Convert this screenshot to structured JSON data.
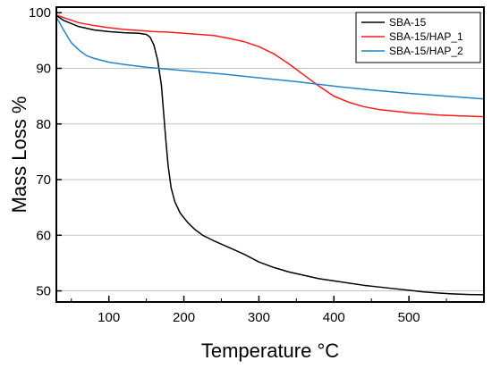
{
  "chart_data": {
    "type": "line",
    "xlabel": "Temperature °C",
    "ylabel": "Mass Loss %",
    "xlim": [
      30,
      600
    ],
    "ylim": [
      48,
      101
    ],
    "x_ticks": [
      100,
      200,
      300,
      400,
      500
    ],
    "y_ticks": [
      50,
      60,
      70,
      80,
      90,
      100
    ],
    "grid": "horizontal",
    "legend_position": "top-right",
    "series": [
      {
        "name": "SBA-15",
        "color": "#000000",
        "points": [
          [
            30,
            99.5
          ],
          [
            40,
            98.6
          ],
          [
            60,
            97.5
          ],
          [
            80,
            96.9
          ],
          [
            100,
            96.6
          ],
          [
            120,
            96.4
          ],
          [
            140,
            96.3
          ],
          [
            150,
            96.1
          ],
          [
            155,
            95.6
          ],
          [
            160,
            94.2
          ],
          [
            165,
            91.5
          ],
          [
            170,
            87.0
          ],
          [
            173,
            82.0
          ],
          [
            176,
            77.0
          ],
          [
            179,
            72.5
          ],
          [
            183,
            68.5
          ],
          [
            188,
            66.0
          ],
          [
            195,
            64.0
          ],
          [
            205,
            62.3
          ],
          [
            215,
            61.0
          ],
          [
            225,
            60.0
          ],
          [
            240,
            59.0
          ],
          [
            260,
            57.8
          ],
          [
            280,
            56.6
          ],
          [
            300,
            55.2
          ],
          [
            320,
            54.2
          ],
          [
            340,
            53.4
          ],
          [
            360,
            52.8
          ],
          [
            380,
            52.2
          ],
          [
            400,
            51.8
          ],
          [
            420,
            51.4
          ],
          [
            440,
            51.0
          ],
          [
            460,
            50.7
          ],
          [
            480,
            50.4
          ],
          [
            500,
            50.1
          ],
          [
            520,
            49.8
          ],
          [
            540,
            49.6
          ],
          [
            560,
            49.45
          ],
          [
            580,
            49.35
          ],
          [
            600,
            49.3
          ]
        ]
      },
      {
        "name": "SBA-15/HAP_1",
        "color": "#ff1a1a",
        "points": [
          [
            30,
            99.6
          ],
          [
            40,
            99.1
          ],
          [
            60,
            98.2
          ],
          [
            80,
            97.7
          ],
          [
            100,
            97.3
          ],
          [
            120,
            97.0
          ],
          [
            140,
            96.8
          ],
          [
            160,
            96.6
          ],
          [
            180,
            96.5
          ],
          [
            200,
            96.3
          ],
          [
            220,
            96.1
          ],
          [
            240,
            95.9
          ],
          [
            260,
            95.4
          ],
          [
            280,
            94.8
          ],
          [
            300,
            93.9
          ],
          [
            320,
            92.6
          ],
          [
            340,
            90.8
          ],
          [
            360,
            88.8
          ],
          [
            380,
            86.8
          ],
          [
            400,
            85.0
          ],
          [
            420,
            83.9
          ],
          [
            440,
            83.1
          ],
          [
            460,
            82.6
          ],
          [
            480,
            82.3
          ],
          [
            500,
            82.0
          ],
          [
            520,
            81.8
          ],
          [
            540,
            81.6
          ],
          [
            560,
            81.5
          ],
          [
            580,
            81.4
          ],
          [
            600,
            81.3
          ]
        ]
      },
      {
        "name": "SBA-15/HAP_2",
        "color": "#1f86c4",
        "points": [
          [
            30,
            99.2
          ],
          [
            35,
            98.0
          ],
          [
            40,
            96.8
          ],
          [
            50,
            94.6
          ],
          [
            60,
            93.3
          ],
          [
            70,
            92.3
          ],
          [
            80,
            91.8
          ],
          [
            100,
            91.1
          ],
          [
            120,
            90.7
          ],
          [
            150,
            90.2
          ],
          [
            200,
            89.6
          ],
          [
            250,
            89.0
          ],
          [
            300,
            88.3
          ],
          [
            350,
            87.6
          ],
          [
            400,
            86.8
          ],
          [
            450,
            86.1
          ],
          [
            500,
            85.5
          ],
          [
            550,
            85.0
          ],
          [
            600,
            84.5
          ]
        ]
      }
    ]
  }
}
